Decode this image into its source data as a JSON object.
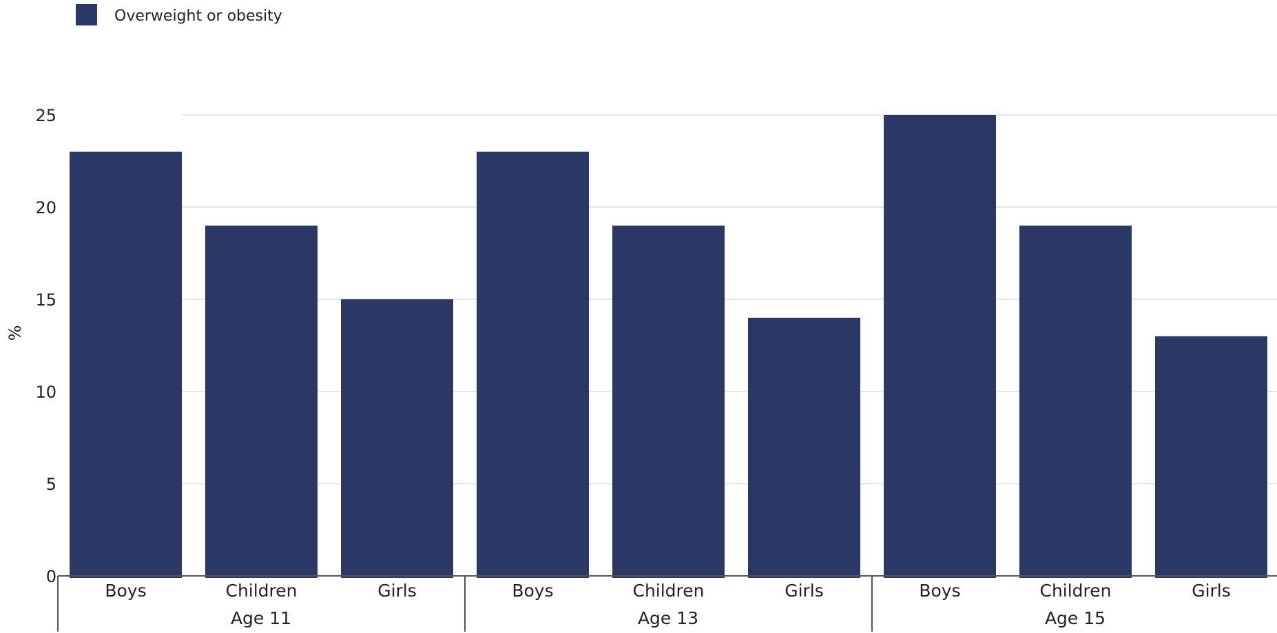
{
  "chart_data": {
    "type": "bar",
    "ylabel": "%",
    "ylim": [
      0,
      25
    ],
    "yticks": [
      0,
      5,
      10,
      15,
      20,
      25
    ],
    "grid": true,
    "legend_position": "top-left",
    "series": [
      {
        "name": "Overweight or obesity",
        "color": "#2b3764",
        "values": [
          23,
          19,
          15,
          23,
          19,
          14,
          25,
          19,
          13
        ]
      }
    ],
    "groups": [
      {
        "label": "Age 11",
        "categories": [
          "Boys",
          "Children",
          "Girls"
        ]
      },
      {
        "label": "Age 13",
        "categories": [
          "Boys",
          "Children",
          "Girls"
        ]
      },
      {
        "label": "Age 15",
        "categories": [
          "Boys",
          "Children",
          "Girls"
        ]
      }
    ]
  }
}
